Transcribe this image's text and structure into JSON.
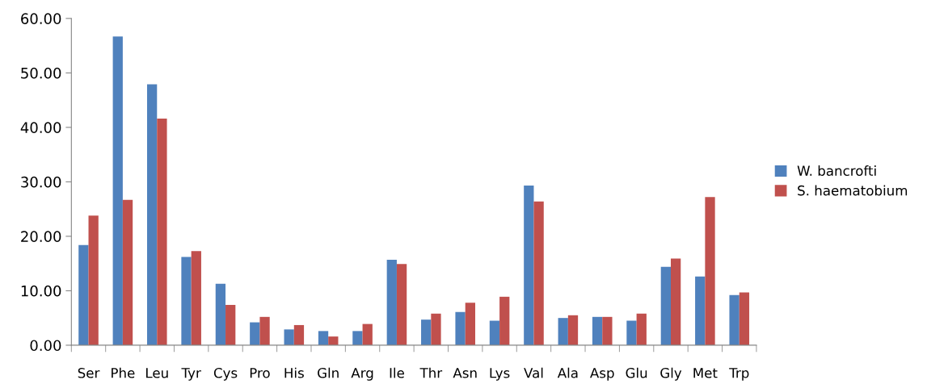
{
  "chart_data": {
    "type": "bar",
    "categories": [
      "Ser",
      "Phe",
      "Leu",
      "Tyr",
      "Cys",
      "Pro",
      "His",
      "Gln",
      "Arg",
      "Ile",
      "Thr",
      "Asn",
      "Lys",
      "Val",
      "Ala",
      "Asp",
      "Glu",
      "Gly",
      "Met",
      "Trp"
    ],
    "series": [
      {
        "name": "W. bancrofti",
        "color": "#4f81bd",
        "values": [
          18.4,
          56.7,
          47.9,
          16.2,
          11.3,
          4.2,
          2.9,
          2.6,
          2.6,
          15.7,
          4.7,
          6.1,
          4.5,
          29.3,
          5.0,
          5.2,
          4.5,
          14.4,
          12.6,
          9.2
        ]
      },
      {
        "name": "S. haematobium",
        "color": "#c0504d",
        "values": [
          23.8,
          26.7,
          41.6,
          17.3,
          7.4,
          5.2,
          3.7,
          1.6,
          3.9,
          14.9,
          5.8,
          7.8,
          8.9,
          26.4,
          5.5,
          5.2,
          5.8,
          15.9,
          27.2,
          9.7
        ]
      }
    ],
    "ylim": [
      0,
      60
    ],
    "yticks": [
      {
        "value": 0,
        "label": "0.00"
      },
      {
        "value": 10,
        "label": "10.00"
      },
      {
        "value": 20,
        "label": "20.00"
      },
      {
        "value": 30,
        "label": "30.00"
      },
      {
        "value": 40,
        "label": "40.00"
      },
      {
        "value": 50,
        "label": "50.00"
      },
      {
        "value": 60,
        "label": "60.00"
      }
    ],
    "grid": false,
    "legend": "right"
  }
}
